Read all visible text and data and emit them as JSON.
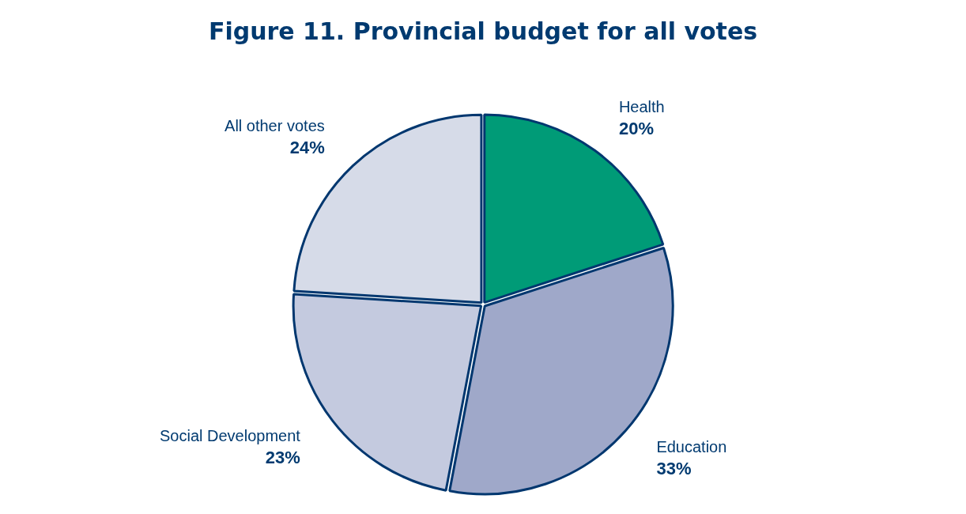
{
  "chart_data": {
    "type": "pie",
    "title": "Figure 11. Provincial budget for all votes",
    "categories": [
      "Health",
      "Education",
      "Social Development",
      "All other votes"
    ],
    "values": [
      20,
      33,
      23,
      24
    ],
    "value_labels": [
      "20%",
      "33%",
      "23%",
      "24%"
    ],
    "colors": [
      "#009b77",
      "#9fa8c9",
      "#c4cadf",
      "#d6dbe8"
    ],
    "legend": false
  }
}
